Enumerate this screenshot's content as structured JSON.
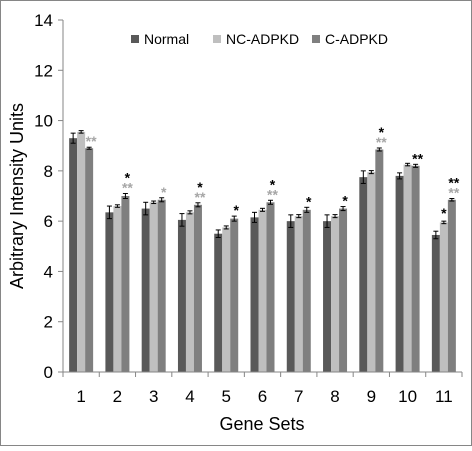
{
  "chart_data": {
    "type": "bar",
    "title": "",
    "xlabel": "Gene Sets",
    "ylabel": "Arbitrary Intensity Units",
    "ylim": [
      0,
      14
    ],
    "yticks": [
      0,
      2,
      4,
      6,
      8,
      10,
      12,
      14
    ],
    "grid": "none",
    "legend_position": "top",
    "categories": [
      "1",
      "2",
      "3",
      "4",
      "5",
      "6",
      "7",
      "8",
      "9",
      "10",
      "11"
    ],
    "series": [
      {
        "name": "Normal",
        "color": "#595959",
        "values": [
          9.3,
          6.35,
          6.5,
          6.05,
          5.5,
          6.15,
          6.0,
          6.0,
          7.75,
          7.8,
          5.45
        ],
        "errors": [
          0.2,
          0.25,
          0.25,
          0.25,
          0.15,
          0.2,
          0.25,
          0.25,
          0.25,
          0.12,
          0.15
        ]
      },
      {
        "name": "NC-ADPKD",
        "color": "#bfbfbf",
        "values": [
          9.55,
          6.6,
          6.75,
          6.35,
          5.75,
          6.45,
          6.2,
          6.2,
          7.95,
          8.25,
          5.95
        ],
        "errors": [
          0.05,
          0.05,
          0.05,
          0.06,
          0.06,
          0.06,
          0.06,
          0.06,
          0.06,
          0.05,
          0.05
        ]
      },
      {
        "name": "C-ADPKD",
        "color": "#7f7f7f",
        "values": [
          8.9,
          7.0,
          6.85,
          6.65,
          6.1,
          6.75,
          6.45,
          6.5,
          8.85,
          8.2,
          6.85
        ],
        "errors": [
          0.04,
          0.1,
          0.08,
          0.08,
          0.1,
          0.08,
          0.1,
          0.08,
          0.06,
          0.06,
          0.05
        ]
      }
    ],
    "annotations": [
      {
        "category": "1",
        "black": "",
        "grey": "**"
      },
      {
        "category": "2",
        "black": "*",
        "grey": "**"
      },
      {
        "category": "3",
        "black": "",
        "grey": "*"
      },
      {
        "category": "4",
        "black": "*",
        "grey": "**"
      },
      {
        "category": "5",
        "black": "*",
        "grey": ""
      },
      {
        "category": "6",
        "black": "*",
        "grey": "**"
      },
      {
        "category": "7",
        "black": "*",
        "grey": ""
      },
      {
        "category": "8",
        "black": "*",
        "grey": ""
      },
      {
        "category": "9",
        "black": "*",
        "grey": "**"
      },
      {
        "category": "10",
        "black": "**",
        "grey": ""
      },
      {
        "category": "11",
        "black": "**",
        "grey": "**"
      }
    ],
    "nc_significance": [
      {
        "category": "11",
        "label": "*"
      }
    ],
    "annotation_colors": {
      "black": "#000000",
      "grey": "#a6a6a6"
    }
  }
}
